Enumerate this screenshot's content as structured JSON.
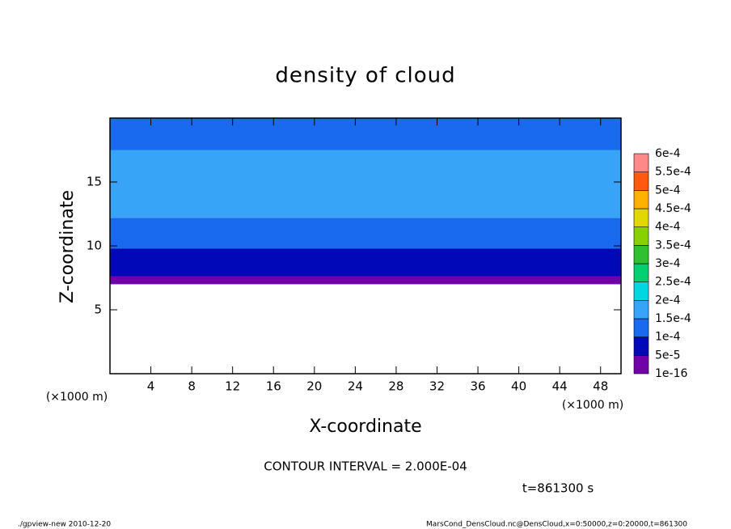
{
  "chart_data": {
    "type": "contour",
    "title": "density of cloud",
    "x_label": "X-coordinate",
    "y_label": "Z-coordinate",
    "x_unit": "(×1000 m)",
    "y_unit": "(×1000 m)",
    "xlim": [
      0,
      50
    ],
    "xticks": [
      4,
      8,
      12,
      16,
      20,
      24,
      28,
      32,
      36,
      40,
      44,
      48
    ],
    "ylim": [
      0,
      20
    ],
    "yticks": [
      5,
      10,
      15
    ],
    "z": [
      7,
      7.6,
      9.8,
      12.2,
      17.5,
      20
    ],
    "values": [
      3e-05,
      7e-05,
      0.00012,
      0.00016,
      0.00013
    ],
    "levels": [
      {
        "value": 1e-16,
        "label": "1e-16"
      },
      {
        "value": 5e-05,
        "label": "5e-5"
      },
      {
        "value": 0.0001,
        "label": "1e-4"
      },
      {
        "value": 0.00015,
        "label": "1.5e-4"
      },
      {
        "value": 0.0002,
        "label": "2e-4"
      },
      {
        "value": 0.00025,
        "label": "2.5e-4"
      },
      {
        "value": 0.0003,
        "label": "3e-4"
      },
      {
        "value": 0.00035,
        "label": "3.5e-4"
      },
      {
        "value": 0.0004,
        "label": "4e-4"
      },
      {
        "value": 0.00045,
        "label": "4.5e-4"
      },
      {
        "value": 0.0005,
        "label": "5e-4"
      },
      {
        "value": 0.00055,
        "label": "5.5e-4"
      },
      {
        "value": 0.0006,
        "label": "6e-4"
      }
    ],
    "colors": [
      "#7000a8",
      "#0008b8",
      "#1a6af0",
      "#38a4f8",
      "#00d8e0",
      "#00d070",
      "#30c030",
      "#88d000",
      "#e0d800",
      "#ffb000",
      "#ff5a10",
      "#ff8888"
    ],
    "annotation": "CONTOUR INTERVAL = 2.000E-04",
    "time_label": "t=861300 s",
    "footer_left": "./gpview-new   2010-12-20",
    "footer_right": "MarsCond_DensCloud.nc@DensCloud,x=0:50000,z=0:20000,t=861300"
  }
}
